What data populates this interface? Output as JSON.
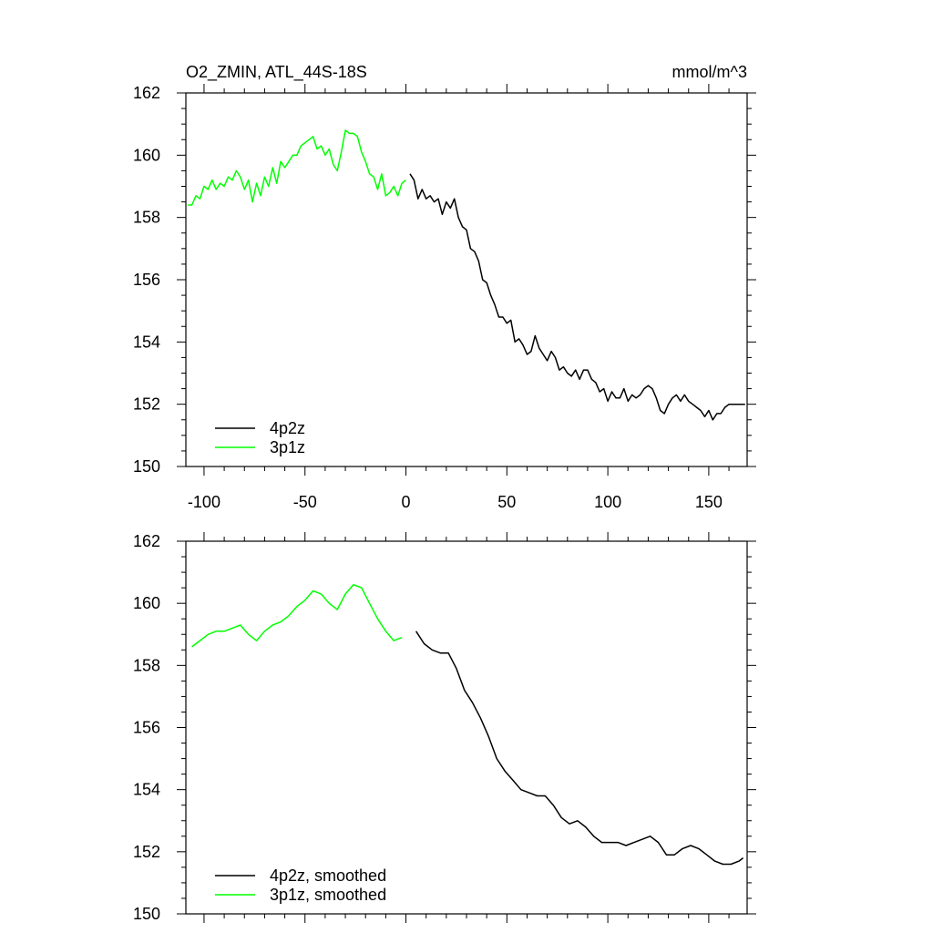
{
  "figure": {
    "title": "O2_ZMIN, ATL_44S-18S",
    "units": "mmol/m^3"
  },
  "chart_data": [
    {
      "type": "line",
      "title": "O2_ZMIN, ATL_44S-18S",
      "units": "mmol/m^3",
      "xlim": [
        -109,
        169
      ],
      "ylim": [
        150,
        162
      ],
      "xticks": [
        -100,
        -50,
        0,
        50,
        100,
        150
      ],
      "xtick_labels": [
        "-100",
        "-50",
        "0",
        "50",
        "100",
        "150"
      ],
      "yticks": [
        150,
        152,
        154,
        156,
        158,
        160,
        162
      ],
      "ytick_labels": [
        "150",
        "152",
        "154",
        "156",
        "158",
        "160",
        "162"
      ],
      "show_xtick_labels": true,
      "legend_position": "bottom-left",
      "series": [
        {
          "name": "4p2z",
          "color": "#000000",
          "x": [
            2,
            4,
            6,
            8,
            10,
            12,
            14,
            16,
            18,
            20,
            22,
            24,
            26,
            28,
            30,
            32,
            34,
            36,
            38,
            40,
            42,
            44,
            46,
            48,
            50,
            52,
            54,
            56,
            58,
            60,
            62,
            64,
            66,
            68,
            70,
            72,
            74,
            76,
            78,
            80,
            82,
            84,
            86,
            88,
            90,
            92,
            94,
            96,
            98,
            100,
            102,
            104,
            106,
            108,
            110,
            112,
            114,
            116,
            118,
            120,
            122,
            124,
            126,
            128,
            130,
            132,
            134,
            136,
            138,
            140,
            142,
            144,
            146,
            148,
            150,
            152,
            154,
            156,
            158,
            160,
            162,
            164,
            166,
            168
          ],
          "y": [
            159.4,
            159.2,
            158.6,
            158.9,
            158.6,
            158.7,
            158.5,
            158.6,
            158.1,
            158.5,
            158.3,
            158.6,
            158.0,
            157.7,
            157.6,
            157.0,
            156.9,
            156.6,
            156.0,
            155.9,
            155.5,
            155.2,
            154.8,
            154.8,
            154.6,
            154.7,
            154.0,
            154.1,
            153.9,
            153.6,
            153.7,
            154.2,
            153.8,
            153.6,
            153.4,
            153.7,
            153.5,
            153.1,
            153.2,
            153.0,
            152.9,
            153.1,
            152.8,
            153.1,
            153.1,
            152.8,
            152.7,
            152.4,
            152.5,
            152.1,
            152.4,
            152.2,
            152.2,
            152.5,
            152.1,
            152.3,
            152.2,
            152.3,
            152.5,
            152.6,
            152.5,
            152.2,
            151.8,
            151.7,
            152.0,
            152.2,
            152.3,
            152.1,
            152.3,
            152.1,
            152.0,
            151.9,
            151.8,
            151.6,
            151.8,
            151.5,
            151.7,
            151.7,
            151.9,
            152.0,
            152.0,
            152.0,
            152.0,
            152.0
          ]
        },
        {
          "name": "3p1z",
          "color": "#00ff00",
          "x": [
            -108,
            -106,
            -104,
            -102,
            -100,
            -98,
            -96,
            -94,
            -92,
            -90,
            -88,
            -86,
            -84,
            -82,
            -80,
            -78,
            -76,
            -74,
            -72,
            -70,
            -68,
            -66,
            -64,
            -62,
            -60,
            -58,
            -56,
            -54,
            -52,
            -50,
            -48,
            -46,
            -44,
            -42,
            -40,
            -38,
            -36,
            -34,
            -32,
            -30,
            -28,
            -26,
            -24,
            -22,
            -20,
            -18,
            -16,
            -14,
            -12,
            -10,
            -8,
            -6,
            -4,
            -2,
            0
          ],
          "y": [
            158.4,
            158.4,
            158.7,
            158.6,
            159.0,
            158.9,
            159.2,
            158.9,
            159.1,
            159.0,
            159.3,
            159.2,
            159.5,
            159.3,
            158.9,
            159.2,
            158.5,
            159.1,
            158.7,
            159.3,
            159.0,
            159.6,
            159.1,
            159.8,
            159.6,
            159.8,
            160.0,
            160.0,
            160.3,
            160.4,
            160.5,
            160.6,
            160.2,
            160.3,
            160.0,
            160.2,
            159.7,
            159.5,
            160.1,
            160.8,
            160.7,
            160.7,
            160.6,
            160.1,
            159.8,
            159.4,
            159.3,
            158.9,
            159.4,
            158.7,
            158.8,
            159.0,
            158.7,
            159.1,
            159.2
          ]
        }
      ]
    },
    {
      "type": "line",
      "xlim": [
        -109,
        169
      ],
      "ylim": [
        150,
        162
      ],
      "xticks": [
        -100,
        -50,
        0,
        50,
        100,
        150
      ],
      "yticks": [
        150,
        152,
        154,
        156,
        158,
        160,
        162
      ],
      "ytick_labels": [
        "150",
        "152",
        "154",
        "156",
        "158",
        "160",
        "162"
      ],
      "show_xtick_labels": false,
      "legend_position": "bottom-left",
      "series": [
        {
          "name": "4p2z, smoothed",
          "color": "#000000",
          "x": [
            5,
            9,
            13,
            17,
            21,
            25,
            29,
            33,
            37,
            41,
            45,
            49,
            53,
            57,
            61,
            65,
            69,
            73,
            77,
            81,
            85,
            89,
            93,
            97,
            101,
            105,
            109,
            113,
            117,
            121,
            125,
            129,
            133,
            137,
            141,
            145,
            149,
            153,
            157,
            161,
            165,
            167
          ],
          "y": [
            159.1,
            158.7,
            158.5,
            158.4,
            158.4,
            157.9,
            157.2,
            156.8,
            156.3,
            155.7,
            155.0,
            154.6,
            154.3,
            154.0,
            153.9,
            153.8,
            153.8,
            153.5,
            153.1,
            152.9,
            153.0,
            152.8,
            152.5,
            152.3,
            152.3,
            152.3,
            152.2,
            152.3,
            152.4,
            152.5,
            152.3,
            151.9,
            151.9,
            152.1,
            152.2,
            152.1,
            151.9,
            151.7,
            151.6,
            151.6,
            151.7,
            151.8
          ]
        },
        {
          "name": "3p1z, smoothed",
          "color": "#00ff00",
          "x": [
            -106,
            -102,
            -98,
            -94,
            -90,
            -86,
            -82,
            -78,
            -74,
            -70,
            -66,
            -62,
            -58,
            -54,
            -50,
            -46,
            -42,
            -38,
            -34,
            -30,
            -26,
            -22,
            -18,
            -14,
            -10,
            -6,
            -2
          ],
          "y": [
            158.6,
            158.8,
            159.0,
            159.1,
            159.1,
            159.2,
            159.3,
            159.0,
            158.8,
            159.1,
            159.3,
            159.4,
            159.6,
            159.9,
            160.1,
            160.4,
            160.3,
            160.0,
            159.8,
            160.3,
            160.6,
            160.5,
            160.0,
            159.5,
            159.1,
            158.8,
            158.9
          ]
        }
      ]
    }
  ]
}
